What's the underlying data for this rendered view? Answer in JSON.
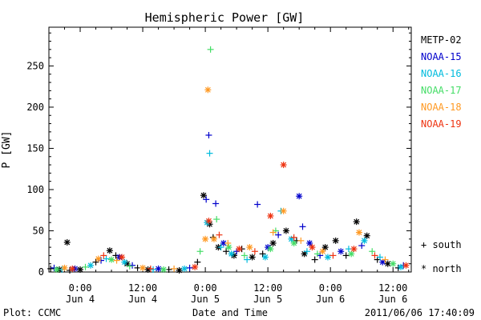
{
  "chart_data": {
    "type": "scatter",
    "title": "Hemispheric Power [GW]",
    "ylabel": "P [GW]",
    "xlabel": "Date and Time",
    "ylim": [
      0,
      297
    ],
    "xlim": [
      "2011-06-03 18:00",
      "2011-06-06 15:30"
    ],
    "y_ticks": [
      0,
      50,
      100,
      150,
      200,
      250
    ],
    "x_ticks": [
      {
        "at": "2011-06-04 00:00",
        "time": "0:00",
        "date": "Jun 4"
      },
      {
        "at": "2011-06-04 12:00",
        "time": "12:00",
        "date": "Jun 4"
      },
      {
        "at": "2011-06-05 00:00",
        "time": "0:00",
        "date": "Jun 5"
      },
      {
        "at": "2011-06-05 12:00",
        "time": "12:00",
        "date": "Jun 5"
      },
      {
        "at": "2011-06-06 00:00",
        "time": "0:00",
        "date": "Jun 6"
      },
      {
        "at": "2011-06-06 12:00",
        "time": "12:00",
        "date": "Jun 6"
      }
    ],
    "marker_legend": [
      {
        "symbol": "+",
        "label": "south"
      },
      {
        "symbol": "*",
        "label": "north"
      }
    ],
    "series": [
      {
        "name": "METP-02",
        "color": "#000000",
        "points": [
          {
            "x": "2011-06-03 18:20",
            "y": 4,
            "m": "+"
          },
          {
            "x": "2011-06-03 20:00",
            "y": 3,
            "m": "*"
          },
          {
            "x": "2011-06-03 22:00",
            "y": 2,
            "m": "+"
          },
          {
            "x": "2011-06-04 00:00",
            "y": 3,
            "m": "*"
          },
          {
            "x": "2011-06-03 21:30",
            "y": 36,
            "m": "*"
          },
          {
            "x": "2011-06-04 03:00",
            "y": 12,
            "m": "+"
          },
          {
            "x": "2011-06-04 05:40",
            "y": 26,
            "m": "*"
          },
          {
            "x": "2011-06-04 06:50",
            "y": 20,
            "m": "+"
          },
          {
            "x": "2011-06-04 09:00",
            "y": 10,
            "m": "*"
          },
          {
            "x": "2011-06-04 11:00",
            "y": 5,
            "m": "+"
          },
          {
            "x": "2011-06-04 13:00",
            "y": 3,
            "m": "*"
          },
          {
            "x": "2011-06-04 17:00",
            "y": 3,
            "m": "+"
          },
          {
            "x": "2011-06-04 19:00",
            "y": 2,
            "m": "*"
          },
          {
            "x": "2011-06-04 22:30",
            "y": 12,
            "m": "+"
          },
          {
            "x": "2011-06-04 23:40",
            "y": 93,
            "m": "*"
          },
          {
            "x": "2011-06-05 00:50",
            "y": 58,
            "m": "*"
          },
          {
            "x": "2011-06-05 01:30",
            "y": 42,
            "m": "+"
          },
          {
            "x": "2011-06-05 02:30",
            "y": 30,
            "m": "*"
          },
          {
            "x": "2011-06-05 04:00",
            "y": 25,
            "m": "+"
          },
          {
            "x": "2011-06-05 05:30",
            "y": 20,
            "m": "*"
          },
          {
            "x": "2011-06-05 07:00",
            "y": 28,
            "m": "+"
          },
          {
            "x": "2011-06-05 09:00",
            "y": 18,
            "m": "*"
          },
          {
            "x": "2011-06-05 11:00",
            "y": 22,
            "m": "+"
          },
          {
            "x": "2011-06-05 13:00",
            "y": 35,
            "m": "*"
          },
          {
            "x": "2011-06-05 15:30",
            "y": 50,
            "m": "*"
          },
          {
            "x": "2011-06-05 17:30",
            "y": 38,
            "m": "+"
          },
          {
            "x": "2011-06-05 19:00",
            "y": 22,
            "m": "*"
          },
          {
            "x": "2011-06-05 21:00",
            "y": 15,
            "m": "+"
          },
          {
            "x": "2011-06-05 23:00",
            "y": 30,
            "m": "*"
          },
          {
            "x": "2011-06-06 01:00",
            "y": 38,
            "m": "*"
          },
          {
            "x": "2011-06-06 03:00",
            "y": 20,
            "m": "+"
          },
          {
            "x": "2011-06-06 05:00",
            "y": 61,
            "m": "*"
          },
          {
            "x": "2011-06-06 07:00",
            "y": 44,
            "m": "*"
          },
          {
            "x": "2011-06-06 09:00",
            "y": 15,
            "m": "+"
          },
          {
            "x": "2011-06-06 11:00",
            "y": 10,
            "m": "*"
          },
          {
            "x": "2011-06-06 13:00",
            "y": 5,
            "m": "+"
          }
        ]
      },
      {
        "name": "NOAA-15",
        "color": "#0000cc",
        "points": [
          {
            "x": "2011-06-03 19:00",
            "y": 5,
            "m": "+"
          },
          {
            "x": "2011-06-03 23:00",
            "y": 4,
            "m": "*"
          },
          {
            "x": "2011-06-04 04:00",
            "y": 14,
            "m": "+"
          },
          {
            "x": "2011-06-04 07:30",
            "y": 18,
            "m": "*"
          },
          {
            "x": "2011-06-04 10:00",
            "y": 8,
            "m": "+"
          },
          {
            "x": "2011-06-04 15:00",
            "y": 4,
            "m": "*"
          },
          {
            "x": "2011-06-04 21:00",
            "y": 5,
            "m": "+"
          },
          {
            "x": "2011-06-05 00:10",
            "y": 88,
            "m": "+"
          },
          {
            "x": "2011-06-05 00:40",
            "y": 166,
            "m": "+"
          },
          {
            "x": "2011-06-05 02:00",
            "y": 83,
            "m": "+"
          },
          {
            "x": "2011-06-05 03:30",
            "y": 35,
            "m": "*"
          },
          {
            "x": "2011-06-05 06:00",
            "y": 25,
            "m": "+"
          },
          {
            "x": "2011-06-05 10:00",
            "y": 82,
            "m": "+"
          },
          {
            "x": "2011-06-05 12:00",
            "y": 30,
            "m": "*"
          },
          {
            "x": "2011-06-05 14:00",
            "y": 45,
            "m": "+"
          },
          {
            "x": "2011-06-05 18:00",
            "y": 92,
            "m": "*"
          },
          {
            "x": "2011-06-05 18:40",
            "y": 55,
            "m": "+"
          },
          {
            "x": "2011-06-05 20:00",
            "y": 35,
            "m": "*"
          },
          {
            "x": "2011-06-05 22:00",
            "y": 20,
            "m": "+"
          },
          {
            "x": "2011-06-06 02:00",
            "y": 25,
            "m": "*"
          },
          {
            "x": "2011-06-06 06:00",
            "y": 32,
            "m": "+"
          },
          {
            "x": "2011-06-06 10:00",
            "y": 12,
            "m": "*"
          },
          {
            "x": "2011-06-06 14:00",
            "y": 8,
            "m": "+"
          }
        ]
      },
      {
        "name": "NOAA-16",
        "color": "#00bbdd",
        "points": [
          {
            "x": "2011-06-03 20:30",
            "y": 3,
            "m": "+"
          },
          {
            "x": "2011-06-04 02:00",
            "y": 8,
            "m": "*"
          },
          {
            "x": "2011-06-04 05:00",
            "y": 16,
            "m": "+"
          },
          {
            "x": "2011-06-04 08:30",
            "y": 12,
            "m": "*"
          },
          {
            "x": "2011-06-04 14:00",
            "y": 3,
            "m": "+"
          },
          {
            "x": "2011-06-04 20:00",
            "y": 4,
            "m": "*"
          },
          {
            "x": "2011-06-05 00:20",
            "y": 60,
            "m": "*"
          },
          {
            "x": "2011-06-05 00:50",
            "y": 144,
            "m": "+"
          },
          {
            "x": "2011-06-05 03:00",
            "y": 30,
            "m": "+"
          },
          {
            "x": "2011-06-05 05:00",
            "y": 22,
            "m": "*"
          },
          {
            "x": "2011-06-05 08:00",
            "y": 15,
            "m": "+"
          },
          {
            "x": "2011-06-05 11:30",
            "y": 18,
            "m": "*"
          },
          {
            "x": "2011-06-05 14:30",
            "y": 74,
            "m": "+"
          },
          {
            "x": "2011-06-05 16:30",
            "y": 40,
            "m": "*"
          },
          {
            "x": "2011-06-05 19:30",
            "y": 25,
            "m": "+"
          },
          {
            "x": "2011-06-05 23:30",
            "y": 18,
            "m": "*"
          },
          {
            "x": "2011-06-06 03:30",
            "y": 28,
            "m": "+"
          },
          {
            "x": "2011-06-06 06:30",
            "y": 38,
            "m": "*"
          },
          {
            "x": "2011-06-06 09:30",
            "y": 18,
            "m": "+"
          },
          {
            "x": "2011-06-06 13:30",
            "y": 6,
            "m": "*"
          }
        ]
      },
      {
        "name": "NOAA-17",
        "color": "#44dd66",
        "points": [
          {
            "x": "2011-06-03 19:30",
            "y": 3,
            "m": "*"
          },
          {
            "x": "2011-06-04 01:00",
            "y": 6,
            "m": "+"
          },
          {
            "x": "2011-06-04 06:00",
            "y": 15,
            "m": "*"
          },
          {
            "x": "2011-06-04 09:30",
            "y": 7,
            "m": "+"
          },
          {
            "x": "2011-06-04 16:00",
            "y": 3,
            "m": "*"
          },
          {
            "x": "2011-06-04 23:00",
            "y": 25,
            "m": "+"
          },
          {
            "x": "2011-06-05 01:00",
            "y": 270,
            "m": "+"
          },
          {
            "x": "2011-06-05 02:10",
            "y": 64,
            "m": "+"
          },
          {
            "x": "2011-06-05 04:30",
            "y": 30,
            "m": "*"
          },
          {
            "x": "2011-06-05 07:30",
            "y": 20,
            "m": "+"
          },
          {
            "x": "2011-06-05 12:30",
            "y": 28,
            "m": "*"
          },
          {
            "x": "2011-06-05 13:30",
            "y": 50,
            "m": "+"
          },
          {
            "x": "2011-06-05 17:00",
            "y": 35,
            "m": "*"
          },
          {
            "x": "2011-06-05 21:30",
            "y": 22,
            "m": "+"
          },
          {
            "x": "2011-06-06 04:00",
            "y": 22,
            "m": "*"
          },
          {
            "x": "2011-06-06 08:00",
            "y": 25,
            "m": "+"
          },
          {
            "x": "2011-06-06 12:00",
            "y": 10,
            "m": "*"
          }
        ]
      },
      {
        "name": "NOAA-18",
        "color": "#ff9922",
        "points": [
          {
            "x": "2011-06-03 21:00",
            "y": 5,
            "m": "*"
          },
          {
            "x": "2011-06-04 03:30",
            "y": 16,
            "m": "*"
          },
          {
            "x": "2011-06-04 07:00",
            "y": 14,
            "m": "+"
          },
          {
            "x": "2011-06-04 12:00",
            "y": 5,
            "m": "*"
          },
          {
            "x": "2011-06-04 18:00",
            "y": 4,
            "m": "+"
          },
          {
            "x": "2011-06-05 00:00",
            "y": 40,
            "m": "*"
          },
          {
            "x": "2011-06-05 00:30",
            "y": 221,
            "m": "*"
          },
          {
            "x": "2011-06-05 01:40",
            "y": 40,
            "m": "*"
          },
          {
            "x": "2011-06-05 04:20",
            "y": 35,
            "m": "+"
          },
          {
            "x": "2011-06-05 08:30",
            "y": 30,
            "m": "*"
          },
          {
            "x": "2011-06-05 13:00",
            "y": 48,
            "m": "+"
          },
          {
            "x": "2011-06-05 15:00",
            "y": 74,
            "m": "*"
          },
          {
            "x": "2011-06-05 18:20",
            "y": 38,
            "m": "+"
          },
          {
            "x": "2011-06-05 22:30",
            "y": 25,
            "m": "*"
          },
          {
            "x": "2011-06-06 05:30",
            "y": 48,
            "m": "*"
          },
          {
            "x": "2011-06-06 10:30",
            "y": 15,
            "m": "+"
          }
        ]
      },
      {
        "name": "NOAA-19",
        "color": "#ee3311",
        "points": [
          {
            "x": "2011-06-03 22:30",
            "y": 4,
            "m": "*"
          },
          {
            "x": "2011-06-04 04:30",
            "y": 20,
            "m": "+"
          },
          {
            "x": "2011-06-04 08:00",
            "y": 18,
            "m": "*"
          },
          {
            "x": "2011-06-04 13:30",
            "y": 4,
            "m": "+"
          },
          {
            "x": "2011-06-04 22:00",
            "y": 6,
            "m": "*"
          },
          {
            "x": "2011-06-05 00:40",
            "y": 62,
            "m": "*"
          },
          {
            "x": "2011-06-05 02:40",
            "y": 45,
            "m": "+"
          },
          {
            "x": "2011-06-05 06:30",
            "y": 28,
            "m": "*"
          },
          {
            "x": "2011-06-05 09:30",
            "y": 25,
            "m": "+"
          },
          {
            "x": "2011-06-05 12:30",
            "y": 68,
            "m": "*"
          },
          {
            "x": "2011-06-05 15:00",
            "y": 130,
            "m": "*"
          },
          {
            "x": "2011-06-05 17:00",
            "y": 42,
            "m": "+"
          },
          {
            "x": "2011-06-05 20:30",
            "y": 30,
            "m": "*"
          },
          {
            "x": "2011-06-06 00:30",
            "y": 20,
            "m": "+"
          },
          {
            "x": "2011-06-06 04:30",
            "y": 28,
            "m": "*"
          },
          {
            "x": "2011-06-06 08:30",
            "y": 20,
            "m": "+"
          },
          {
            "x": "2011-06-06 14:30",
            "y": 8,
            "m": "*"
          }
        ]
      }
    ]
  },
  "footer": {
    "left": "Plot: CCMC",
    "right": "2011/06/06 17:40:09"
  }
}
